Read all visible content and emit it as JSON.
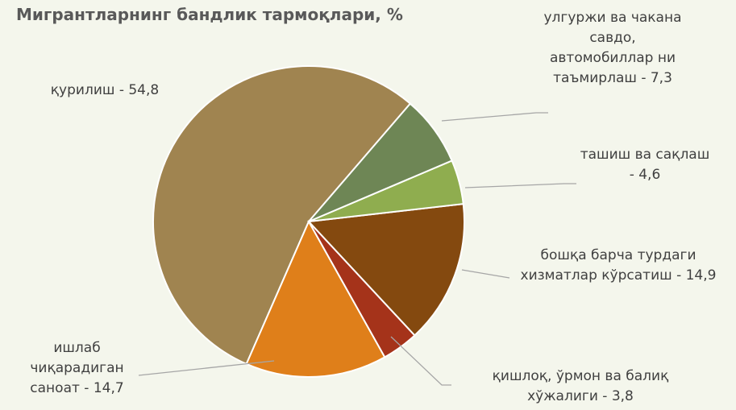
{
  "chart_data": {
    "type": "pie",
    "title": "Мигрантларнинг бандлик тармоқлари, %",
    "labels": [
      "улгуржи ва чакана савдо, автомобиллар ни таъмирлаш - 7,3",
      "ташиш ва сақлаш - 4,6",
      "бошқа барча турдаги хизматлар кўрсатиш - 14,9",
      "қишлоқ, ўрмон ва балиқ хўжалиги - 3,8",
      "ишлаб чиқарадиган саноат - 14,7",
      "қурилиш - 54,8"
    ],
    "values": [
      7.3,
      4.6,
      14.9,
      3.8,
      14.7,
      54.8
    ],
    "colors": [
      "#6e8655",
      "#8fad4f",
      "#84490f",
      "#a5331a",
      "#df7f1a",
      "#a08450"
    ]
  }
}
